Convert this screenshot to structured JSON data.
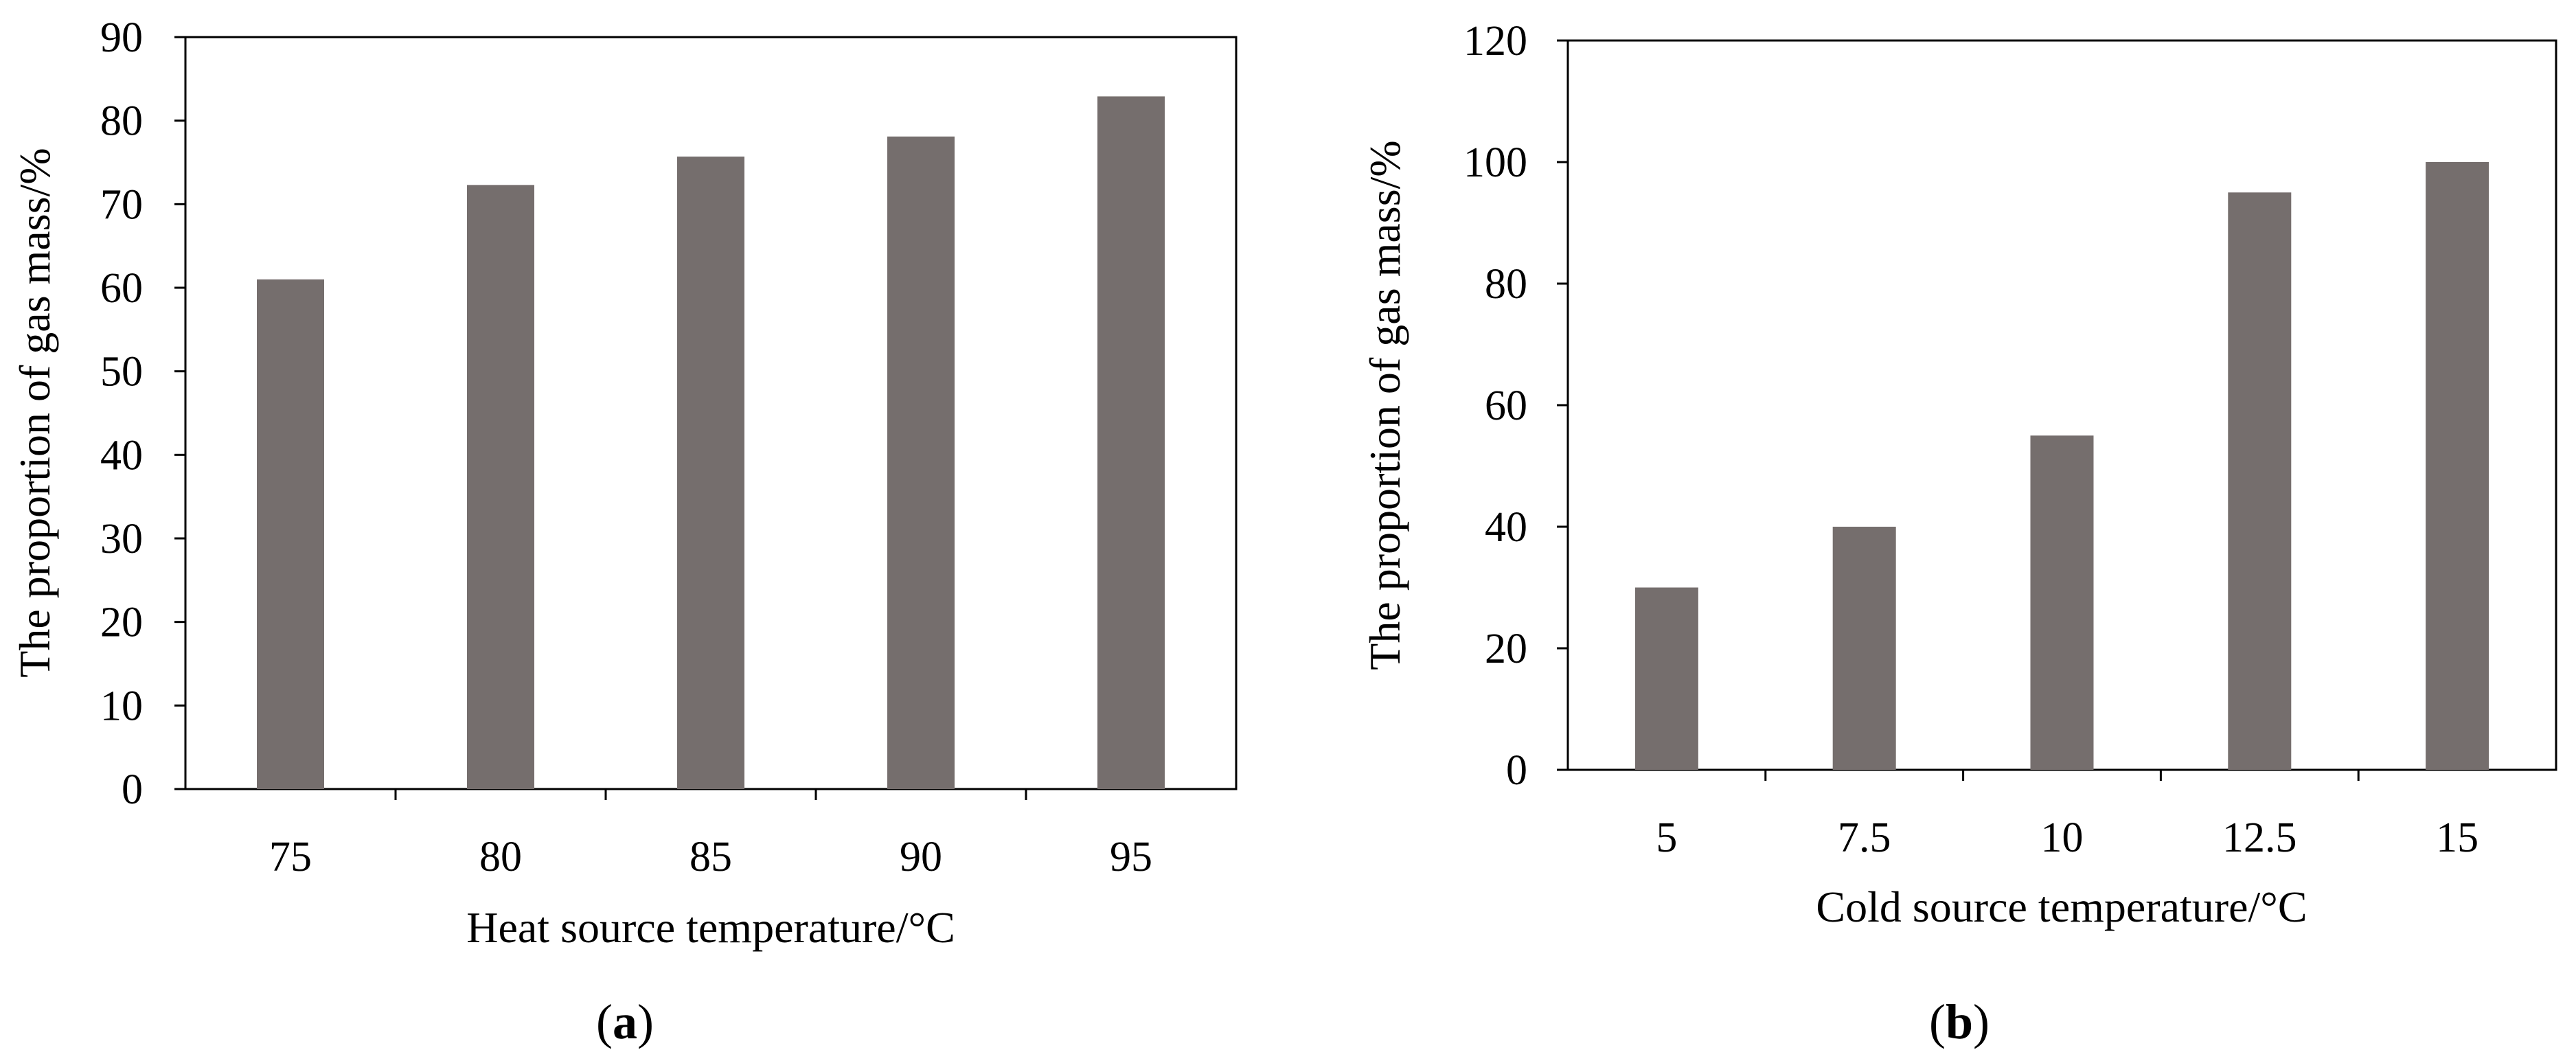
{
  "colors": {
    "bar": "#756e6d",
    "axis": "#000000",
    "background": "#ffffff"
  },
  "chart_data": [
    {
      "type": "bar",
      "panel": "(a)",
      "panel_letter": "a",
      "xlabel": "Heat source temperature/°C",
      "ylabel": "The proportion of gas mass/%",
      "categories": [
        "75",
        "80",
        "85",
        "90",
        "95"
      ],
      "values": [
        61,
        72.3,
        75.7,
        78.1,
        82.9
      ],
      "ylim": [
        0,
        90
      ],
      "yticks": [
        0,
        10,
        20,
        30,
        40,
        50,
        60,
        70,
        80,
        90
      ],
      "grid": false,
      "legend": false
    },
    {
      "type": "bar",
      "panel": "(b)",
      "panel_letter": "b",
      "xlabel": "Cold source temperature/°C",
      "ylabel": "The proportion of gas mass/%",
      "categories": [
        "5",
        "7.5",
        "10",
        "12.5",
        "15"
      ],
      "values": [
        30,
        40,
        55,
        95,
        100
      ],
      "ylim": [
        0,
        120
      ],
      "yticks": [
        0,
        20,
        40,
        60,
        80,
        100,
        120
      ],
      "grid": false,
      "legend": false
    }
  ]
}
